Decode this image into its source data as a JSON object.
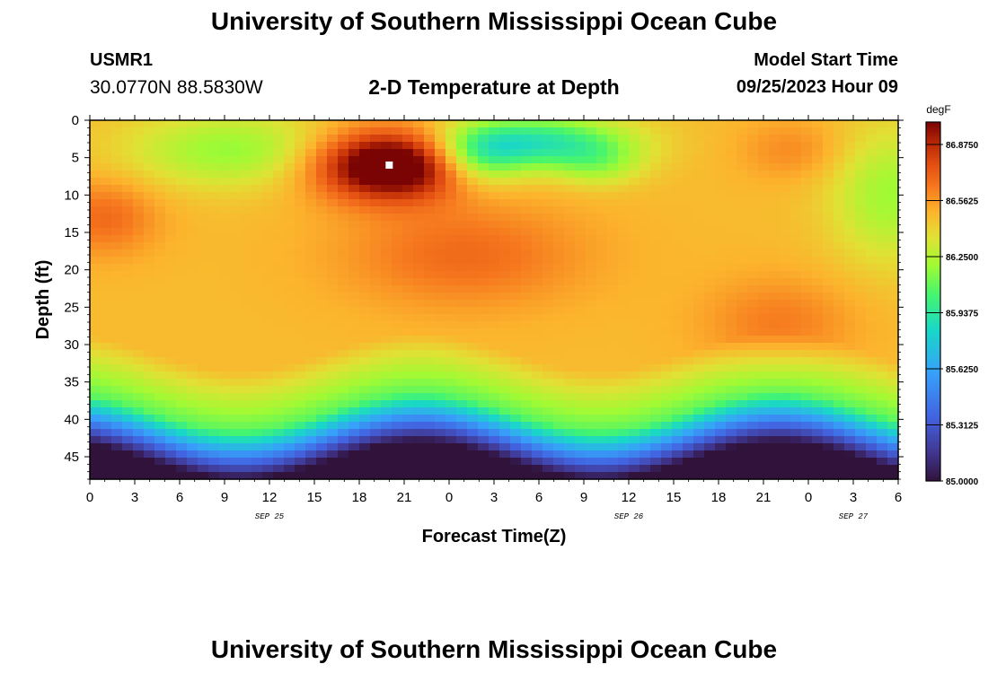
{
  "header": {
    "title": "University of Southern Mississippi Ocean Cube",
    "station": "USMR1",
    "coords": "30.0770N  88.5830W",
    "subtitle": "2-D Temperature at Depth",
    "model_start_label": "Model Start Time",
    "model_start_value": "09/25/2023 Hour 09"
  },
  "footer": {
    "title": "University of Southern Mississippi Ocean Cube"
  },
  "chart_data": {
    "type": "heatmap",
    "title": "2-D Temperature at Depth",
    "xlabel": "Forecast Time(Z)",
    "ylabel": "Depth (ft)",
    "x_ticks": [
      "0",
      "3",
      "6",
      "9",
      "12",
      "15",
      "18",
      "21",
      "0",
      "3",
      "6",
      "9",
      "12",
      "15",
      "18",
      "21",
      "0",
      "3",
      "6"
    ],
    "x_range_hours": [
      0,
      54
    ],
    "date_labels": [
      {
        "text": "SEP 25",
        "hour": 12
      },
      {
        "text": "SEP 26",
        "hour": 36
      },
      {
        "text": "SEP 27",
        "hour": 51
      }
    ],
    "y_ticks": [
      0,
      5,
      10,
      15,
      20,
      25,
      30,
      35,
      40,
      45
    ],
    "ylim": [
      0,
      48
    ],
    "colorbar": {
      "unit": "degF",
      "min": 85.0,
      "max": 87.0,
      "labels": [
        "86.8750",
        "86.5625",
        "86.2500",
        "85.9375",
        "85.6250",
        "85.3125",
        "85.0000"
      ],
      "label_values": [
        86.875,
        86.5625,
        86.25,
        85.9375,
        85.625,
        85.3125,
        85.0
      ]
    },
    "marker": {
      "hour": 20,
      "depth": 6
    },
    "features": [
      {
        "hour": 20,
        "depth": 6,
        "temp": 86.98
      },
      {
        "hour": 20,
        "depth": 3,
        "temp": 86.9
      },
      {
        "hour": 9,
        "depth": 4,
        "temp": 86.1
      },
      {
        "hour": 10,
        "depth": 9,
        "temp": 86.25
      },
      {
        "hour": 31,
        "depth": 2,
        "temp": 85.85
      },
      {
        "hour": 27,
        "depth": 4,
        "temp": 86.0
      },
      {
        "hour": 33,
        "depth": 6,
        "temp": 86.05
      },
      {
        "hour": 1,
        "depth": 12,
        "temp": 86.72
      },
      {
        "hour": 26,
        "depth": 18,
        "temp": 86.7
      },
      {
        "hour": 22,
        "depth": 20,
        "temp": 86.68
      },
      {
        "hour": 45,
        "depth": 28,
        "temp": 86.66
      },
      {
        "hour": 52,
        "depth": 8,
        "temp": 86.35
      },
      {
        "hour": 53,
        "depth": 18,
        "temp": 86.25
      },
      {
        "hour": 45,
        "depth": 3,
        "temp": 86.6
      }
    ]
  }
}
